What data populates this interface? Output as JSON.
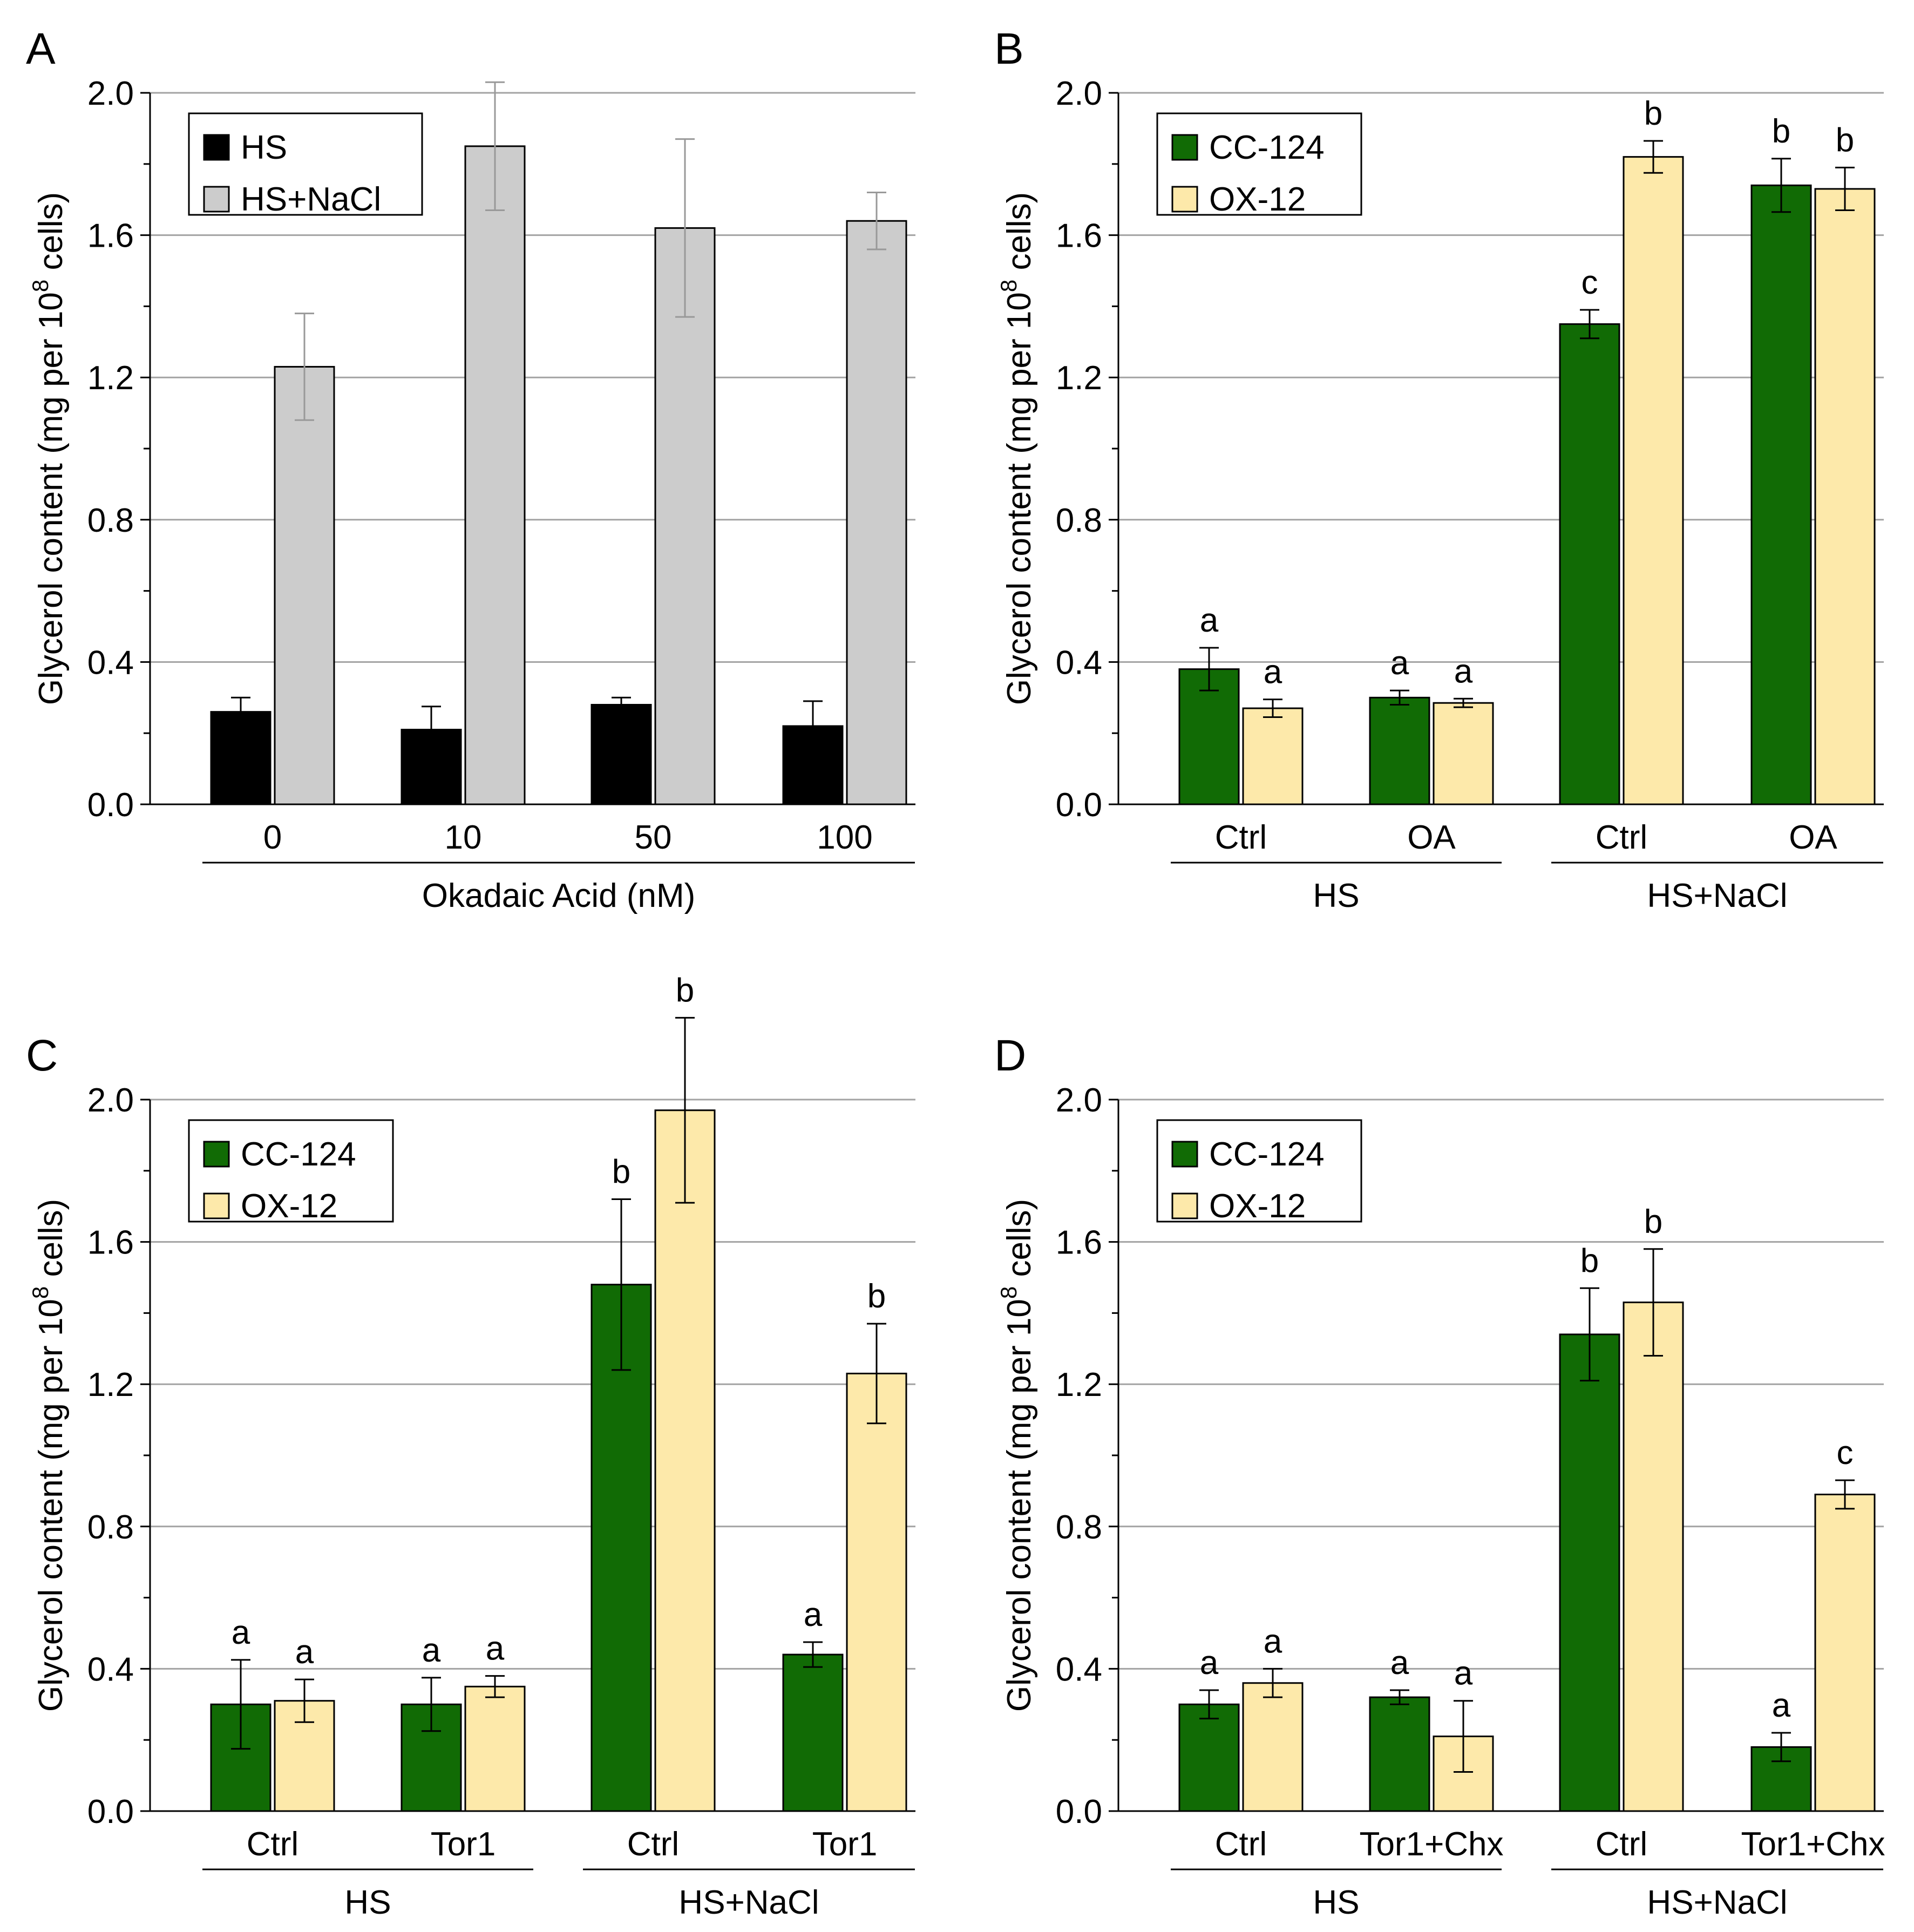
{
  "colors": {
    "cc124": "#116b05",
    "ox12": "#fde9aa",
    "hs": "#000000",
    "hsnacl": "#cccccc",
    "grid": "#a3a3a3",
    "err_a_nacl": "#999999"
  },
  "y_axis_label": {
    "main": "Glycerol content (mg per 10",
    "exponent": "8",
    "tail": " cells)"
  },
  "chart_data": [
    {
      "panel": "A",
      "type": "bar",
      "ylim": [
        0,
        2.0
      ],
      "yticks": [
        "0.0",
        "0.4",
        "0.8",
        "1.2",
        "1.6",
        "2.0"
      ],
      "grid": true,
      "legend_position": "top-left",
      "categories": [
        "0",
        "10",
        "50",
        "100"
      ],
      "group_labels": [],
      "xlabel": "Okadaic Acid (nM)",
      "series": [
        {
          "name": "HS",
          "color_key": "hs",
          "values": [
            0.26,
            0.21,
            0.28,
            0.22
          ],
          "errors": [
            0.04,
            0.065,
            0.02,
            0.07
          ],
          "letters": []
        },
        {
          "name": "HS+NaCl",
          "color_key": "hsnacl",
          "values": [
            1.23,
            1.85,
            1.62,
            1.64
          ],
          "errors": [
            0.15,
            0.18,
            0.25,
            0.08
          ],
          "letters": []
        }
      ]
    },
    {
      "panel": "B",
      "type": "bar",
      "ylim": [
        0,
        2.0
      ],
      "yticks": [
        "0.0",
        "0.4",
        "0.8",
        "1.2",
        "1.6",
        "2.0"
      ],
      "grid": true,
      "legend_position": "top-left",
      "categories": [
        "Ctrl",
        "OA",
        "Ctrl",
        "OA"
      ],
      "group_labels": [
        "HS",
        "HS+NaCl"
      ],
      "xlabel": "",
      "series": [
        {
          "name": "CC-124",
          "color_key": "cc124",
          "values": [
            0.38,
            0.3,
            1.35,
            1.74
          ],
          "errors": [
            0.06,
            0.02,
            0.04,
            0.075
          ],
          "letters": [
            "a",
            "a",
            "c",
            "b"
          ]
        },
        {
          "name": "OX-12",
          "color_key": "ox12",
          "values": [
            0.27,
            0.285,
            1.82,
            1.73
          ],
          "errors": [
            0.025,
            0.012,
            0.045,
            0.06
          ],
          "letters": [
            "a",
            "a",
            "b",
            "b"
          ]
        }
      ]
    },
    {
      "panel": "C",
      "type": "bar",
      "ylim": [
        0,
        2.0
      ],
      "yticks": [
        "0.0",
        "0.4",
        "0.8",
        "1.2",
        "1.6",
        "2.0"
      ],
      "grid": true,
      "legend_position": "top-left",
      "categories": [
        "Ctrl",
        "Tor1",
        "Ctrl",
        "Tor1"
      ],
      "group_labels": [
        "HS",
        "HS+NaCl"
      ],
      "xlabel": "",
      "series": [
        {
          "name": "CC-124",
          "color_key": "cc124",
          "values": [
            0.3,
            0.3,
            1.48,
            0.44
          ],
          "errors": [
            0.125,
            0.075,
            0.24,
            0.035
          ],
          "letters": [
            "a",
            "a",
            "b",
            "a"
          ]
        },
        {
          "name": "OX-12",
          "color_key": "ox12",
          "values": [
            0.31,
            0.35,
            1.97,
            1.23
          ],
          "errors": [
            0.06,
            0.03,
            0.26,
            0.14
          ],
          "letters": [
            "a",
            "a",
            "b",
            "b"
          ]
        }
      ]
    },
    {
      "panel": "D",
      "type": "bar",
      "ylim": [
        0,
        2.0
      ],
      "yticks": [
        "0.0",
        "0.4",
        "0.8",
        "1.2",
        "1.6",
        "2.0"
      ],
      "grid": true,
      "legend_position": "top-left",
      "categories": [
        "Ctrl",
        "Tor1+Chx",
        "Ctrl",
        "Tor1+Chx"
      ],
      "group_labels": [
        "HS",
        "HS+NaCl"
      ],
      "xlabel": "",
      "series": [
        {
          "name": "CC-124",
          "color_key": "cc124",
          "values": [
            0.3,
            0.32,
            1.34,
            0.18
          ],
          "errors": [
            0.04,
            0.02,
            0.13,
            0.04
          ],
          "letters": [
            "a",
            "a",
            "b",
            "a"
          ]
        },
        {
          "name": "OX-12",
          "color_key": "ox12",
          "values": [
            0.36,
            0.21,
            1.43,
            0.89
          ],
          "errors": [
            0.04,
            0.1,
            0.15,
            0.04
          ],
          "letters": [
            "a",
            "a",
            "b",
            "c"
          ]
        }
      ]
    }
  ]
}
